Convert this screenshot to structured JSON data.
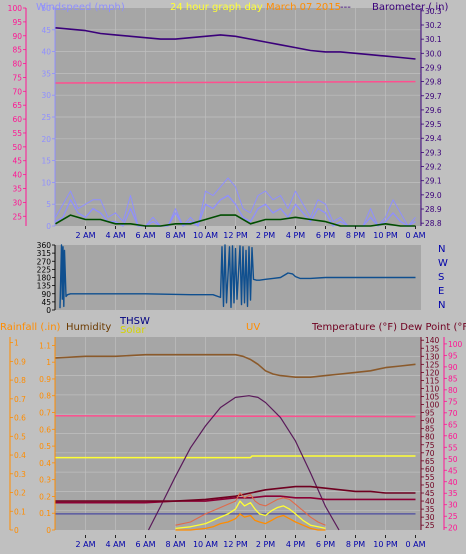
{
  "header": {
    "windspeed_label": "Windspeed (mph)",
    "graph_title": "24 hour graph day",
    "date_label": "March 07 2015",
    "barometer_label": "Barometer (.in)"
  },
  "colors": {
    "panel_bg": "#a6a6a6",
    "frame": "#c0c0c0",
    "grid": "#bfbfbf",
    "windspeed": "#8f8fff",
    "gust": "#8f8fff",
    "wind_avg": "#004d00",
    "wind_green": "#1a8a1a",
    "barometer": "#3a007a",
    "pink_axis": "#ff1493",
    "pink_line": "#ff4f8f",
    "direction": "#0f4f8f",
    "humidity": "#8b5a2b",
    "temp": "#6f0020",
    "dewpoint": "#8b0035",
    "uv": "#5a1a5a",
    "thsw": "#1a1a8a",
    "solar": "#ffff33",
    "rain": "#ff8c00",
    "rain_axis_label": "#ff8c00",
    "humidity_label": "#6b3a00",
    "thsw_label": "#000080",
    "solar_label": "#d4d400",
    "uv_label": "#ff8c00",
    "temp_label": "#6f0020",
    "nav_text": "#0000aa"
  },
  "x_tick_labels": [
    "2 AM",
    "4 AM",
    "6 AM",
    "8 AM",
    "10 AM",
    "12 PM",
    "2 PM",
    "4 PM",
    "6 PM",
    "8 PM",
    "10 PM",
    "0 AM"
  ],
  "direction_labels": [
    "N",
    "W",
    "S",
    "E",
    "N"
  ],
  "bottom_labels": {
    "rainfall": "Rainfall (.in)",
    "humidity": "Humidity",
    "thsw": "THSW",
    "solar": "Solar",
    "uv": "UV",
    "temperature": "Temperature (°F) Dew Point (°F)"
  },
  "chart_data": [
    {
      "type": "line",
      "name": "wind-barometer",
      "x_unit": "hours since 0 AM",
      "xlim": [
        0,
        24
      ],
      "y_left": {
        "label": "Windspeed (mph)",
        "ticks": [
          0,
          5,
          10,
          15,
          20,
          25,
          30,
          35,
          40,
          45,
          50
        ],
        "lim": [
          0,
          50
        ]
      },
      "y_left_outer": {
        "ticks": [
          25,
          30,
          35,
          40,
          45,
          50,
          55,
          60,
          65,
          70,
          75,
          80,
          85,
          90,
          95,
          100
        ],
        "lim": [
          21.5,
          100
        ]
      },
      "y_right": {
        "label": "Barometer (.in)",
        "ticks": [
          28.8,
          28.9,
          29,
          29.1,
          29.2,
          29.3,
          29.4,
          29.5,
          29.6,
          29.7,
          29.8,
          29.9,
          30,
          30.1,
          30.2,
          30.3
        ],
        "lim": [
          28.78,
          30.32
        ]
      },
      "series": [
        {
          "name": "Barometer",
          "axis": "right",
          "x": [
            0,
            1,
            2,
            3,
            4,
            5,
            6,
            7,
            8,
            9,
            10,
            11,
            12,
            13,
            14,
            15,
            16,
            17,
            18,
            19,
            20,
            21,
            22,
            23,
            24
          ],
          "y": [
            30.18,
            30.17,
            30.16,
            30.14,
            30.13,
            30.12,
            30.11,
            30.1,
            30.1,
            30.11,
            30.12,
            30.13,
            30.12,
            30.1,
            30.08,
            30.06,
            30.04,
            30.02,
            30.01,
            30.01,
            30,
            29.99,
            29.98,
            29.97,
            29.96
          ]
        },
        {
          "axis": "outer",
          "x": [
            0,
            24
          ],
          "y": [
            73,
            73.5
          ]
        },
        {
          "name": "Windspeed",
          "axis": "left",
          "x": [
            0,
            0.5,
            1,
            1.5,
            2,
            2.5,
            3,
            3.5,
            4,
            4.5,
            5,
            5.5,
            6,
            6.5,
            7,
            7.5,
            8,
            8.5,
            9,
            9.5,
            10,
            10.5,
            11,
            11.5,
            12,
            12.5,
            13,
            13.5,
            14,
            14.5,
            15,
            15.5,
            16,
            16.5,
            17,
            17.5,
            18,
            18.5,
            19,
            19.5,
            20,
            20.5,
            21,
            21.5,
            22,
            22.5,
            23,
            23.5,
            24
          ],
          "y": [
            1,
            2,
            6,
            3,
            2,
            4,
            3,
            1,
            1,
            0,
            4,
            0,
            0,
            1,
            0,
            0,
            3,
            0,
            1,
            0,
            5,
            4,
            6,
            7,
            5,
            2,
            1,
            4,
            5,
            3,
            4,
            2,
            5,
            3,
            1,
            4,
            3,
            0,
            1,
            0,
            0,
            0,
            2,
            0,
            1,
            3,
            1,
            0,
            1
          ]
        },
        {
          "name": "Gust",
          "axis": "left",
          "x": [
            0,
            0.5,
            1,
            1.5,
            2,
            2.5,
            3,
            3.5,
            4,
            4.5,
            5,
            5.5,
            6,
            6.5,
            7,
            7.5,
            8,
            8.5,
            9,
            9.5,
            10,
            10.5,
            11,
            11.5,
            12,
            12.5,
            13,
            13.5,
            14,
            14.5,
            15,
            15.5,
            16,
            16.5,
            17,
            17.5,
            18,
            18.5,
            19,
            19.5,
            20,
            20.5,
            21,
            21.5,
            22,
            22.5,
            23,
            23.5,
            24
          ],
          "y": [
            2,
            5,
            8,
            4,
            5,
            6,
            6,
            2,
            3,
            1,
            7,
            0,
            0,
            2,
            0,
            0,
            4,
            0,
            2,
            0,
            8,
            7,
            9,
            11,
            9,
            4,
            3,
            7,
            8,
            6,
            7,
            4,
            8,
            5,
            2,
            6,
            5,
            1,
            2,
            0,
            0,
            0,
            4,
            0,
            2,
            6,
            3,
            0,
            2
          ]
        },
        {
          "name": "Wind Average",
          "axis": "left",
          "x": [
            0,
            1,
            2,
            3,
            4,
            5,
            6,
            7,
            8,
            9,
            10,
            11,
            12,
            13,
            14,
            15,
            16,
            17,
            18,
            19,
            20,
            21,
            22,
            23,
            24
          ],
          "y": [
            0.5,
            2.5,
            1.5,
            1.5,
            0.5,
            0.5,
            0,
            0,
            0.5,
            0.5,
            1.5,
            2.5,
            2.5,
            0.5,
            1.5,
            1.5,
            2,
            1.5,
            1,
            0,
            0,
            0,
            0.5,
            0,
            0
          ]
        }
      ]
    },
    {
      "type": "line",
      "name": "wind-direction",
      "x_unit": "hours since 0 AM",
      "xlim": [
        0,
        24
      ],
      "y": {
        "ticks": [
          0,
          45,
          90,
          135,
          180,
          225,
          270,
          315,
          360
        ],
        "lim": [
          0,
          360
        ]
      },
      "series": [
        {
          "name": "Direction",
          "x": [
            0.3,
            0.4,
            0.45,
            0.5,
            0.55,
            0.6,
            0.7,
            0.8,
            1,
            6,
            9,
            10.5,
            11,
            11.1,
            11.2,
            11.3,
            11.4,
            11.6,
            11.7,
            11.8,
            11.9,
            12,
            12.1,
            12.3,
            12.4,
            12.5,
            12.6,
            12.7,
            12.8,
            12.9,
            13,
            13.1,
            13.2,
            13.4,
            13.6,
            14,
            14.5,
            15,
            15.5,
            15.8,
            16,
            16.3,
            17,
            18,
            20,
            22,
            24
          ],
          "y": [
            10,
            360,
            60,
            350,
            20,
            330,
            75,
            85,
            90,
            90,
            85,
            85,
            70,
            350,
            20,
            360,
            40,
            350,
            15,
            355,
            40,
            340,
            60,
            355,
            30,
            350,
            40,
            330,
            20,
            350,
            55,
            345,
            170,
            165,
            165,
            170,
            175,
            180,
            205,
            200,
            185,
            175,
            175,
            180,
            180,
            180,
            180
          ]
        }
      ]
    },
    {
      "type": "line",
      "name": "weather-multi",
      "x_unit": "hours since 0 AM",
      "xlim": [
        0,
        24
      ],
      "y_rain": {
        "label": "Rainfall (.in)",
        "ticks": [
          0,
          0.1,
          0.2,
          0.3,
          0.4,
          0.5,
          0.6,
          0.7,
          0.8,
          0.9,
          1
        ],
        "lim": [
          0,
          1.03
        ]
      },
      "y_uv": {
        "ticks": [
          0,
          0.1,
          0.2,
          0.3,
          0.4,
          0.5,
          0.6,
          0.7,
          0.8,
          0.9,
          1,
          1.1
        ],
        "lim": [
          0,
          1.15
        ]
      },
      "y_temp": {
        "label": "Temperature (°F) Dew Point (°F)",
        "ticks": [
          25,
          30,
          35,
          40,
          45,
          50,
          55,
          60,
          65,
          70,
          75,
          80,
          85,
          90,
          95,
          100,
          105,
          110,
          115,
          120,
          125,
          130,
          135,
          140
        ],
        "lim": [
          22,
          142
        ]
      },
      "y_outer": {
        "ticks": [
          20,
          25,
          30,
          35,
          40,
          45,
          50,
          55,
          60,
          65,
          70,
          75,
          80,
          85,
          90,
          95,
          100
        ],
        "lim": [
          19,
          103
        ]
      },
      "series": [
        {
          "name": "Humidity",
          "axis": "temp",
          "x": [
            0,
            2,
            4,
            6,
            8,
            10,
            11,
            12,
            12.5,
            13,
            13.5,
            14,
            14.5,
            15,
            16,
            17,
            18,
            19,
            20,
            21,
            22,
            23,
            24
          ],
          "y": [
            129,
            130,
            130,
            131,
            131,
            131,
            131,
            131,
            130,
            128,
            125,
            121,
            119,
            118,
            117,
            117,
            118,
            119,
            120,
            121,
            123,
            124,
            125
          ]
        },
        {
          "axis": "temp",
          "x": [
            0,
            24
          ],
          "y": [
            93,
            92.5
          ]
        },
        {
          "axis": "temp",
          "x": [
            0,
            13,
            13.1,
            24
          ],
          "y": [
            67,
            67,
            68,
            68
          ]
        },
        {
          "name": "Temperature",
          "axis": "temp",
          "x": [
            0,
            2,
            4,
            6,
            8,
            10,
            11,
            12,
            13,
            14,
            15,
            16,
            17,
            18,
            19,
            20,
            21,
            22,
            23,
            24
          ],
          "y": [
            40,
            40,
            40,
            40,
            40,
            41,
            42,
            43,
            45,
            47,
            48,
            49,
            49,
            48,
            47,
            46,
            46,
            45,
            45,
            45
          ]
        },
        {
          "name": "Dew Point",
          "axis": "temp",
          "x": [
            0,
            2,
            4,
            6,
            8,
            10,
            11,
            12,
            13,
            14,
            15,
            16,
            17,
            18,
            19,
            20,
            21,
            22,
            23,
            24
          ],
          "y": [
            39,
            39,
            39,
            39,
            40,
            40,
            41,
            42,
            42,
            43,
            43,
            42,
            42,
            41,
            41,
            41,
            41,
            41,
            41,
            41
          ]
        },
        {
          "name": "UV",
          "axis": "uv",
          "x": [
            6.2,
            7,
            8,
            9,
            10,
            11,
            12,
            12.9,
            13.5,
            14,
            15,
            16,
            17,
            18,
            18.9
          ],
          "y": [
            0,
            0.14,
            0.32,
            0.49,
            0.62,
            0.73,
            0.79,
            0.8,
            0.79,
            0.76,
            0.67,
            0.53,
            0.34,
            0.14,
            0
          ]
        },
        {
          "axis": "temp",
          "x": [
            0,
            24
          ],
          "y": [
            32,
            32
          ]
        },
        {
          "name": "THSW",
          "axis": "temp",
          "x": [
            8,
            9,
            10,
            10.5,
            11,
            11.5,
            12,
            12.3,
            12.6,
            13,
            13.3,
            13.6,
            14,
            14.4,
            14.8,
            15.2,
            15.6,
            16,
            16.5,
            17,
            17.5,
            18
          ],
          "y": [
            25,
            27,
            32,
            34,
            36,
            38,
            40,
            45,
            42,
            44,
            40,
            38,
            37,
            39,
            41,
            42,
            41,
            38,
            34,
            30,
            27,
            25
          ]
        },
        {
          "name": "Solar",
          "axis": "temp",
          "x": [
            8,
            9,
            10,
            10.5,
            11,
            11.5,
            12,
            12.3,
            12.6,
            13,
            13.3,
            13.6,
            14,
            14.4,
            14.8,
            15.2,
            15.6,
            16,
            16.5,
            17,
            17.5,
            18
          ],
          "y": [
            23,
            24,
            26,
            28,
            30,
            32,
            35,
            40,
            37,
            39,
            35,
            32,
            31,
            34,
            36,
            37,
            35,
            32,
            28,
            25,
            24,
            23
          ]
        },
        {
          "name": "Rainfall",
          "axis": "temp",
          "x": [
            8,
            9,
            10,
            10.5,
            11,
            11.5,
            12,
            12.3,
            12.6,
            13,
            13.3,
            13.6,
            14,
            14.4,
            14.8,
            15.2,
            15.6,
            16,
            16.5,
            17,
            17.5,
            18
          ],
          "y": [
            22,
            22,
            23,
            24,
            26,
            27,
            29,
            32,
            30,
            31,
            28,
            27,
            26,
            28,
            30,
            31,
            29,
            27,
            25,
            23,
            22,
            22
          ]
        }
      ]
    }
  ]
}
